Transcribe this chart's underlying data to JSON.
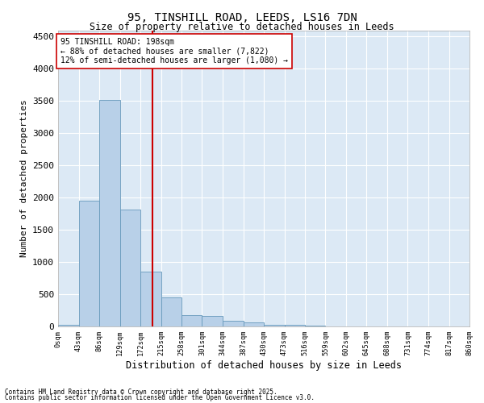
{
  "title": "95, TINSHILL ROAD, LEEDS, LS16 7DN",
  "subtitle": "Size of property relative to detached houses in Leeds",
  "xlabel": "Distribution of detached houses by size in Leeds",
  "ylabel": "Number of detached properties",
  "annotation_title": "95 TINSHILL ROAD: 198sqm",
  "annotation_line1": "← 88% of detached houses are smaller (7,822)",
  "annotation_line2": "12% of semi-detached houses are larger (1,080) →",
  "property_size": 198,
  "bin_edges": [
    0,
    43,
    86,
    129,
    172,
    215,
    258,
    301,
    344,
    387,
    430,
    473,
    516,
    559,
    602,
    645,
    688,
    731,
    774,
    817,
    860
  ],
  "bar_values": [
    30,
    1950,
    3520,
    1810,
    850,
    445,
    175,
    165,
    90,
    60,
    30,
    20,
    10,
    5,
    3,
    2,
    1,
    1,
    1,
    0
  ],
  "bar_color": "#b8d0e8",
  "bar_edge_color": "#6699bb",
  "vline_color": "#cc0000",
  "vline_x": 198,
  "ylim": [
    0,
    4600
  ],
  "yticks": [
    0,
    500,
    1000,
    1500,
    2000,
    2500,
    3000,
    3500,
    4000,
    4500
  ],
  "bg_color": "#dce9f5",
  "footnote1": "Contains HM Land Registry data © Crown copyright and database right 2025.",
  "footnote2": "Contains public sector information licensed under the Open Government Licence v3.0."
}
